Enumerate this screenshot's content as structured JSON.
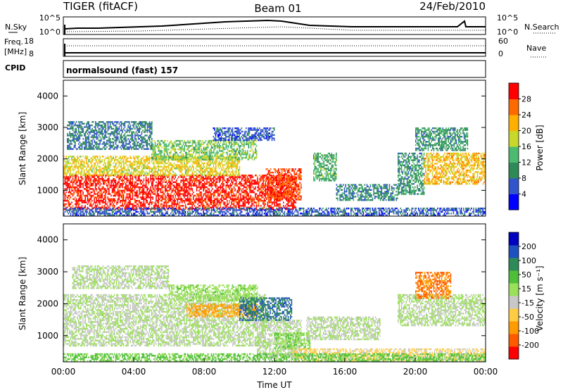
{
  "header": {
    "radar": "TIGER (fitACF)",
    "beam": "Beam 01",
    "date": "24/Feb/2010"
  },
  "summary_panels": {
    "nsky_label": "N.Sky",
    "nsky_ticks": [
      "10^5",
      "10^0"
    ],
    "nsearch_label": "N.Search",
    "nsearch_ticks": [
      "10^5",
      "10^0"
    ],
    "freq_label": "Freq.",
    "freq_unit": "[MHz]",
    "freq_ticks": [
      "18",
      "8"
    ],
    "nave_label": "Nave",
    "nave_ticks": [
      "60",
      "0"
    ],
    "cpid_label": "CPID",
    "cpid_value": "normalsound (fast) 157"
  },
  "chart_data": [
    {
      "type": "heatmap",
      "title": "Power",
      "xlabel": "Time UT",
      "ylabel": "Slant Range [km]",
      "xlim": [
        "00:00",
        "24:00"
      ],
      "ylim": [
        180,
        4500
      ],
      "yticks": [
        "4000",
        "3000",
        "2000",
        "1000"
      ],
      "colorbar": {
        "label": "Power [dB]",
        "ticks": [
          "28",
          "24",
          "20",
          "16",
          "12",
          "8",
          "4"
        ],
        "range": [
          0,
          30
        ],
        "colors": [
          "#0000ff",
          "#3355cc",
          "#2e8b57",
          "#4cbb70",
          "#c8d82a",
          "#ffb000",
          "#ff6a00",
          "#ff0000"
        ]
      },
      "scatter_regions": [
        {
          "t0": 0.0,
          "t1": 13.2,
          "r0": 400,
          "r1": 1500,
          "level": 28
        },
        {
          "t0": 0.0,
          "t1": 10.0,
          "r0": 1500,
          "r1": 2100,
          "level": 18
        },
        {
          "t0": 0.2,
          "t1": 5.0,
          "r0": 2300,
          "r1": 3200,
          "level": 8
        },
        {
          "t0": 5.0,
          "t1": 11.0,
          "r0": 2000,
          "r1": 2600,
          "level": 14
        },
        {
          "t0": 8.5,
          "t1": 12.0,
          "r0": 2600,
          "r1": 3000,
          "level": 6
        },
        {
          "t0": 11.5,
          "t1": 13.5,
          "r0": 700,
          "r1": 1700,
          "level": 26
        },
        {
          "t0": 14.2,
          "t1": 15.5,
          "r0": 1300,
          "r1": 2200,
          "level": 12
        },
        {
          "t0": 15.5,
          "t1": 19.0,
          "r0": 700,
          "r1": 1200,
          "level": 9
        },
        {
          "t0": 19.0,
          "t1": 20.5,
          "r0": 900,
          "r1": 2200,
          "level": 10
        },
        {
          "t0": 20.5,
          "t1": 24.0,
          "r0": 1200,
          "r1": 2200,
          "level": 20
        },
        {
          "t0": 20.0,
          "t1": 23.0,
          "r0": 2300,
          "r1": 3000,
          "level": 10
        },
        {
          "t0": 0.0,
          "t1": 24.0,
          "r0": 180,
          "r1": 450,
          "level": 6
        }
      ]
    },
    {
      "type": "heatmap",
      "title": "Velocity",
      "xlabel": "Time UT",
      "ylabel": "Slant Range [km]",
      "xlim": [
        "00:00",
        "24:00"
      ],
      "ylim": [
        180,
        4500
      ],
      "xticks": [
        "00:00",
        "04:00",
        "08:00",
        "12:00",
        "16:00",
        "20:00",
        "00:00"
      ],
      "yticks": [
        "4000",
        "3000",
        "2000",
        "1000"
      ],
      "colorbar": {
        "label": "Velocity [m s⁻¹]",
        "ticks": [
          "200",
          "100",
          "50",
          "15",
          "-15",
          "-50",
          "-100",
          "-200"
        ],
        "range": [
          -250,
          250
        ],
        "colors": [
          "#ff0000",
          "#ff5a00",
          "#ff9a00",
          "#ffcc44",
          "#c8c8c8",
          "#9be05a",
          "#4fbf3a",
          "#2e8b57",
          "#1e50c0",
          "#0000c0"
        ]
      },
      "scatter_regions": [
        {
          "t0": 0.0,
          "t1": 11.5,
          "r0": 700,
          "r1": 2300,
          "level": 0
        },
        {
          "t0": 0.5,
          "t1": 6.0,
          "r0": 2500,
          "r1": 3200,
          "level": 0
        },
        {
          "t0": 6.0,
          "t1": 11.0,
          "r0": 2100,
          "r1": 2600,
          "level": 30
        },
        {
          "t0": 7.0,
          "t1": 11.0,
          "r0": 1600,
          "r1": 2000,
          "level": -120
        },
        {
          "t0": 10.0,
          "t1": 13.0,
          "r0": 1500,
          "r1": 2200,
          "level": 150
        },
        {
          "t0": 11.0,
          "t1": 13.5,
          "r0": 300,
          "r1": 1500,
          "level": 0
        },
        {
          "t0": 12.0,
          "t1": 14.0,
          "r0": 600,
          "r1": 1100,
          "level": 40
        },
        {
          "t0": 13.8,
          "t1": 18.0,
          "r0": 900,
          "r1": 1600,
          "level": 0
        },
        {
          "t0": 13.0,
          "t1": 24.0,
          "r0": 180,
          "r1": 600,
          "level": -60
        },
        {
          "t0": 19.0,
          "t1": 24.0,
          "r0": 1300,
          "r1": 2300,
          "level": 5
        },
        {
          "t0": 20.0,
          "t1": 22.0,
          "r0": 2200,
          "r1": 3000,
          "level": -150
        },
        {
          "t0": 0.0,
          "t1": 24.0,
          "r0": 180,
          "r1": 450,
          "level": 60
        }
      ]
    }
  ]
}
